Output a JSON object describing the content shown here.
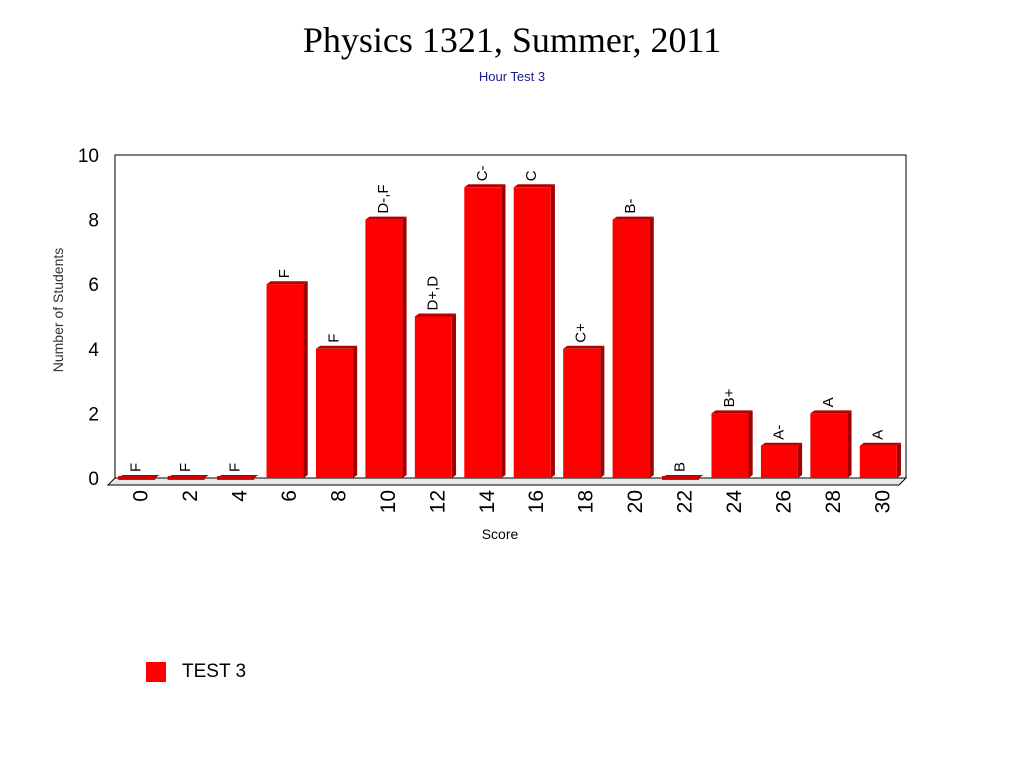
{
  "chart_data": {
    "type": "bar",
    "title": "Physics 1321, Summer, 2011",
    "subtitle": "Hour Test 3",
    "xlabel": "Score",
    "ylabel": "Number of Students",
    "categories": [
      "0",
      "2",
      "4",
      "6",
      "8",
      "10",
      "12",
      "14",
      "16",
      "18",
      "20",
      "22",
      "24",
      "26",
      "28",
      "30"
    ],
    "series": [
      {
        "name": "TEST 3",
        "color": "#ff0000",
        "values": [
          0,
          0,
          0,
          6,
          4,
          8,
          5,
          9,
          9,
          4,
          8,
          0,
          2,
          1,
          2,
          1
        ]
      }
    ],
    "data_labels": [
      "F",
      "F",
      "F",
      "F",
      "F",
      "D-,F",
      "D+,D",
      "C-",
      "C",
      "C+",
      "B-",
      "B",
      "B+",
      "A-",
      "A",
      "A"
    ],
    "ylim": [
      0,
      10
    ],
    "yticks": [
      "0",
      "2",
      "4",
      "6",
      "8",
      "10"
    ],
    "grid": true,
    "legend_position": "bottom-left"
  }
}
